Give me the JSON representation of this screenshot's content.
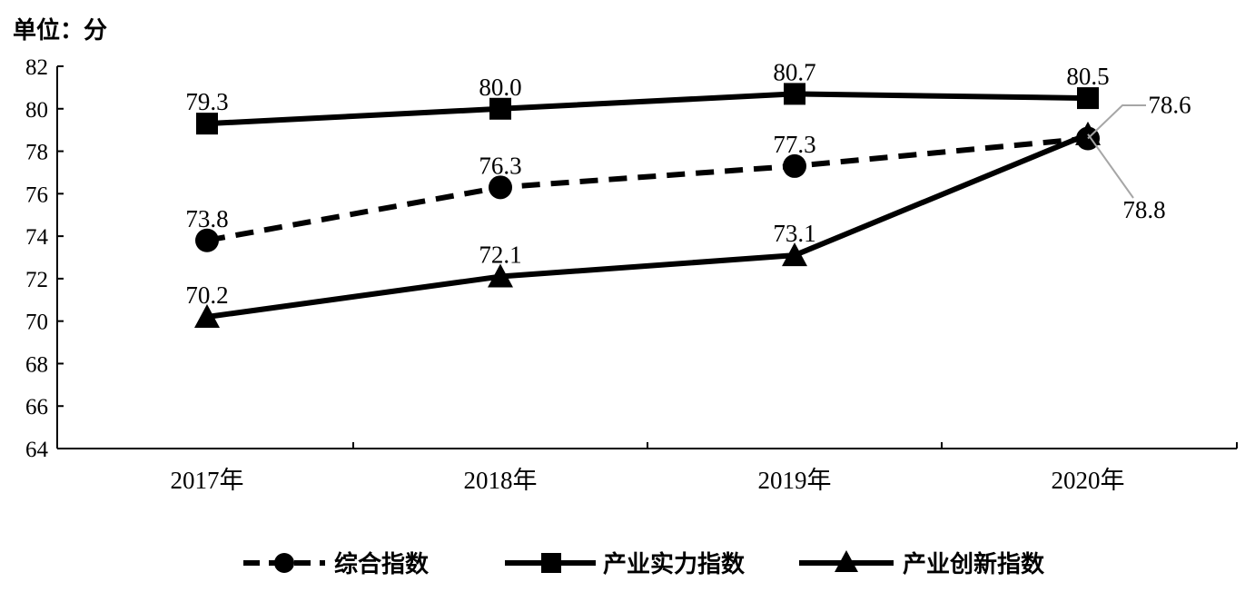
{
  "chart_data": {
    "type": "line",
    "unit_label": "单位：分",
    "categories": [
      "2017年",
      "2018年",
      "2019年",
      "2020年"
    ],
    "yticks": [
      "64",
      "66",
      "68",
      "70",
      "72",
      "74",
      "76",
      "78",
      "80",
      "82"
    ],
    "ylim": [
      64,
      82
    ],
    "grid": false,
    "legend_position": "bottom",
    "series": [
      {
        "name": "综合指数",
        "values": [
          73.8,
          76.3,
          77.3,
          78.6
        ],
        "labels": [
          "73.8",
          "76.3",
          "77.3",
          "78.6"
        ],
        "line_style": "dashed",
        "marker": "circle",
        "color": "#000000"
      },
      {
        "name": "产业实力指数",
        "values": [
          79.3,
          80.0,
          80.7,
          80.5
        ],
        "labels": [
          "79.3",
          "80.0",
          "80.7",
          "80.5"
        ],
        "line_style": "solid",
        "marker": "square",
        "color": "#000000"
      },
      {
        "name": "产业创新指数",
        "values": [
          70.2,
          72.1,
          73.1,
          78.8
        ],
        "labels": [
          "70.2",
          "72.1",
          "73.1",
          "78.8"
        ],
        "line_style": "solid",
        "marker": "triangle",
        "color": "#000000"
      }
    ],
    "leader_line_color": "#a6a6a6"
  }
}
